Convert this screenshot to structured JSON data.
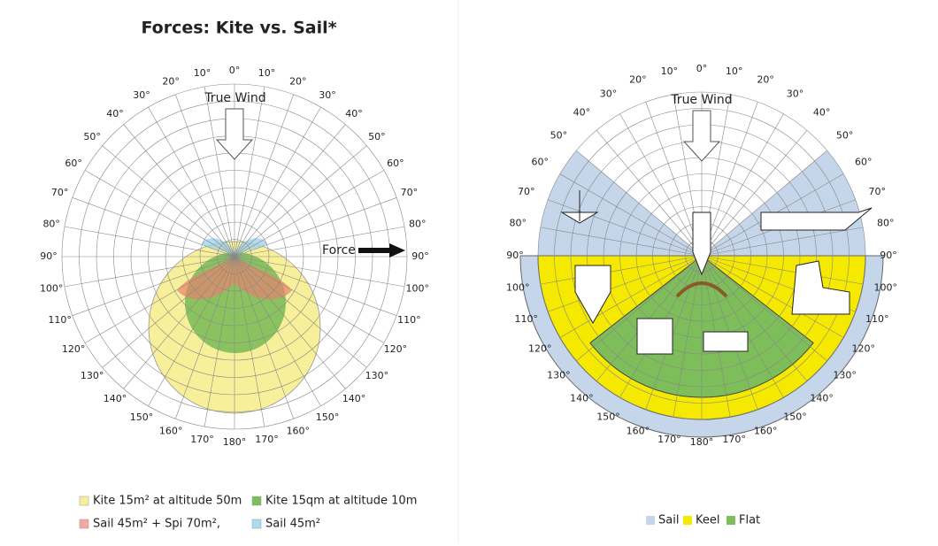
{
  "left": {
    "title": "Forces: Kite vs. Sail*",
    "wind_label": "True Wind",
    "force_label": "Force",
    "angle_labels": [
      "0°",
      "10°",
      "20°",
      "30°",
      "40°",
      "50°",
      "60°",
      "70°",
      "80°",
      "90°",
      "100°",
      "110°",
      "120°",
      "130°",
      "140°",
      "150°",
      "160°",
      "170°",
      "180°"
    ],
    "legend": [
      "Kite 15m² at altitude 50m",
      "Kite 15qm at altitude 10m",
      "Sail 45m² + Spi 70m²,",
      "Sail 45m²"
    ]
  },
  "right": {
    "wind_label": "True Wind",
    "angle_labels": [
      "0°",
      "10°",
      "20°",
      "30°",
      "40°",
      "50°",
      "60°",
      "70°",
      "80°",
      "90°",
      "100°",
      "110°",
      "120°",
      "130°",
      "140°",
      "150°",
      "160°",
      "170°",
      "180°"
    ],
    "legend": [
      "Sail",
      "Keel",
      "Flat"
    ]
  }
}
